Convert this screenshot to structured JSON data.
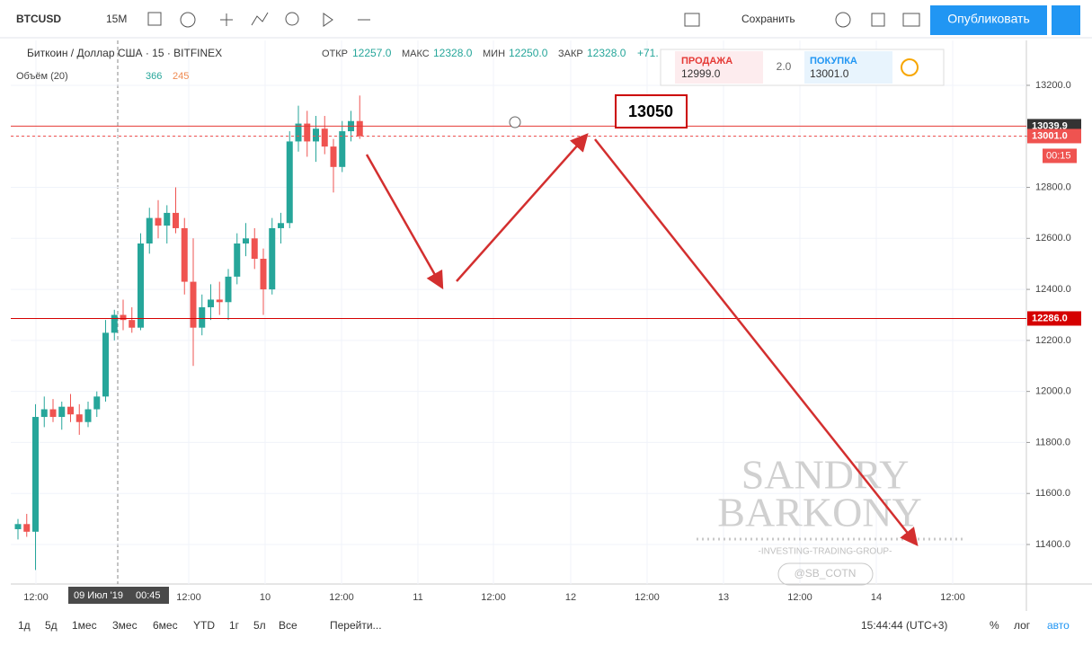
{
  "toolbar": {
    "symbol": "BTCUSD",
    "interval": "15М",
    "save": "Сохранить",
    "publish": "Опубликовать"
  },
  "legend": {
    "title": "Биткоин / Доллар США · 15 · BITFINEX",
    "open_label": "ОТКР",
    "open": "12257.0",
    "high_label": "МАКС",
    "high": "12328.0",
    "low_label": "МИН",
    "low": "12250.0",
    "close_label": "ЗАКР",
    "close": "12328.0",
    "change": "+71."
  },
  "volume": {
    "label": "Объём (20)",
    "up": "366",
    "down": "245"
  },
  "trade": {
    "sell_label": "ПРОДАЖА",
    "sell": "12999.0",
    "spread": "2.0",
    "buy_label": "ПОКУПКА",
    "buy": "13001.0"
  },
  "chart_data": {
    "type": "candlestick",
    "open": [
      11460,
      11480,
      11450,
      11900,
      11930,
      11900,
      11940,
      11910,
      11880,
      11930,
      11980,
      12230,
      12300,
      12280,
      12250,
      12580,
      12680,
      12650,
      12700,
      12640,
      12430,
      12250,
      12330,
      12360,
      12350,
      12450,
      12580,
      12600,
      12520,
      12400,
      12640,
      12660,
      12980,
      13050,
      12980,
      13030,
      12960,
      12880,
      13020,
      13060
    ],
    "high": [
      11500,
      11520,
      11950,
      11980,
      11970,
      11960,
      11990,
      11950,
      11960,
      12000,
      12280,
      12320,
      12360,
      12330,
      12620,
      12720,
      12750,
      12730,
      12800,
      12680,
      12600,
      12380,
      12420,
      12430,
      12480,
      12620,
      12660,
      12640,
      12560,
      12680,
      12700,
      13020,
      13120,
      13100,
      13080,
      13080,
      12990,
      13060,
      13100,
      13160
    ],
    "low": [
      11420,
      11430,
      11300,
      11860,
      11880,
      11850,
      11880,
      11830,
      11860,
      11900,
      11960,
      12200,
      12240,
      12230,
      12240,
      12540,
      12600,
      12580,
      12620,
      12380,
      12100,
      12220,
      12280,
      12300,
      12280,
      12420,
      12530,
      12480,
      12300,
      12380,
      12580,
      12640,
      12940,
      12920,
      12900,
      12930,
      12780,
      12860,
      12980,
      12990
    ],
    "close": [
      11480,
      11450,
      11900,
      11930,
      11900,
      11940,
      11910,
      11880,
      11930,
      11980,
      12230,
      12300,
      12280,
      12250,
      12580,
      12680,
      12650,
      12700,
      12640,
      12430,
      12250,
      12330,
      12360,
      12350,
      12450,
      12580,
      12600,
      12520,
      12400,
      12640,
      12660,
      12980,
      13050,
      12980,
      13030,
      12960,
      12880,
      13020,
      13060,
      13001
    ],
    "up_color": "#26a69a",
    "down_color": "#ef5350",
    "ylim": [
      11245,
      13376
    ],
    "yticks": [
      {
        "value": 11400,
        "label": "11400.0"
      },
      {
        "value": 11600,
        "label": "11600.0"
      },
      {
        "value": 11800,
        "label": "11800.0"
      },
      {
        "value": 12000,
        "label": "12000.0"
      },
      {
        "value": 12200,
        "label": "12200.0"
      },
      {
        "value": 12400,
        "label": "12400.0"
      },
      {
        "value": 12600,
        "label": "12600.0"
      },
      {
        "value": 12800,
        "label": "12800.0"
      },
      {
        "value": 13000,
        "label": "13000.0"
      },
      {
        "value": 13200,
        "label": "13200.0"
      }
    ],
    "x_labels": [
      "12:00",
      "12:00",
      "10",
      "12:00",
      "11",
      "12:00",
      "12",
      "12:00",
      "13",
      "12:00",
      "14",
      "12:00"
    ],
    "crosshair": {
      "date": "09 Июл '19",
      "time": "00:45"
    },
    "levels": [
      {
        "value": 13039.9,
        "label": "13039.9",
        "color": "#e53935"
      },
      {
        "value": 13001.0,
        "label": "13001.0",
        "color": "#ef5350"
      },
      {
        "value": 12286.0,
        "label": "12286.0",
        "color": "#d50000"
      }
    ],
    "timer": "00:15",
    "annotation": "13050"
  },
  "watermark": {
    "line1": "SANDRY",
    "line2": "BARKONY",
    "tagline": "-INVESTING-TRADING-GROUP-",
    "handle": "@SB_COTN"
  },
  "bottom": {
    "ranges": [
      "1д",
      "5д",
      "1мес",
      "3мес",
      "6мес",
      "YTD",
      "1г",
      "5л",
      "Все"
    ],
    "goto": "Перейти...",
    "clock": "15:44:44 (UTC+3)",
    "percent": "%",
    "log": "лог",
    "auto": "авто"
  }
}
